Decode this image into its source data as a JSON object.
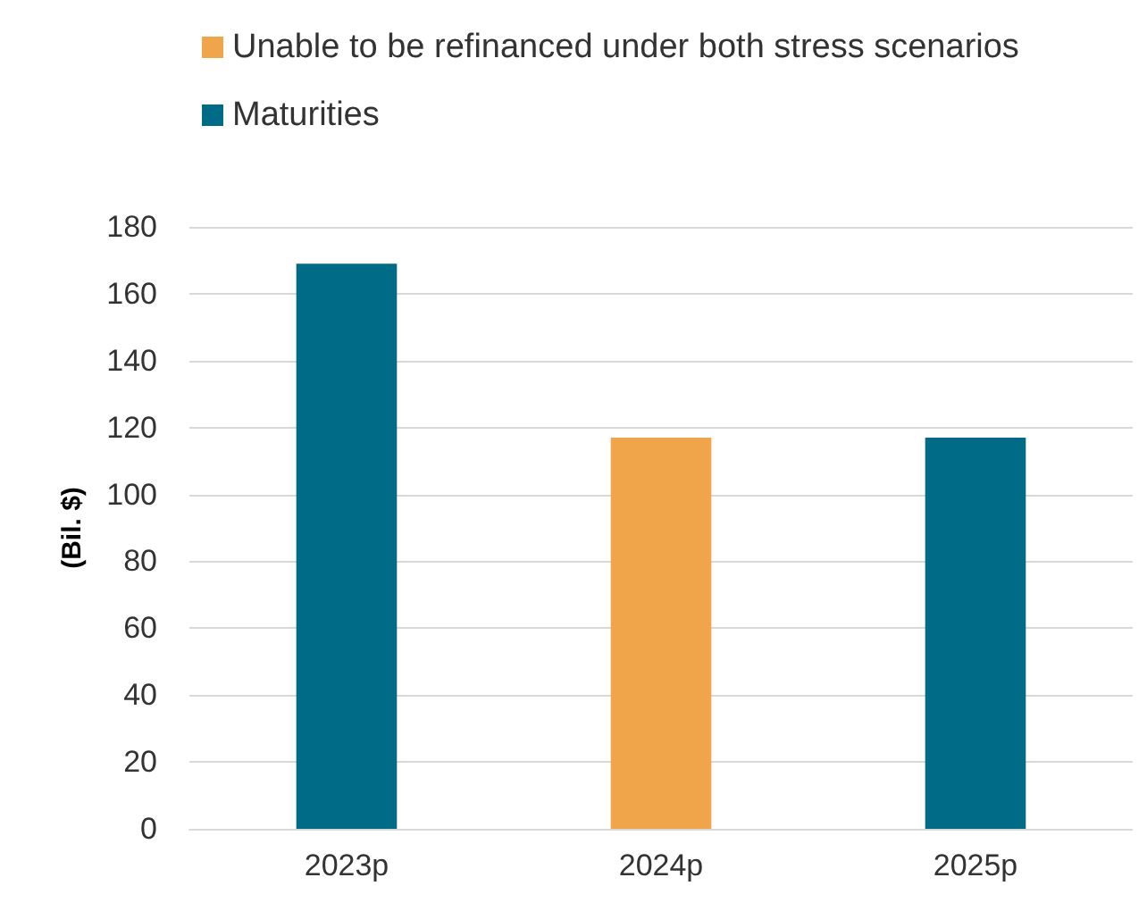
{
  "chart_data": {
    "type": "bar",
    "ylabel": "(Bil. $)",
    "categories": [
      "2023p",
      "2024p",
      "2025p"
    ],
    "series": [
      {
        "name": "Unable to be refinanced under both stress scenarios",
        "color": "#f0a54a",
        "values": [
          null,
          117,
          null
        ]
      },
      {
        "name": "Maturities",
        "color": "#006b87",
        "values": [
          169,
          null,
          117
        ]
      }
    ],
    "stacked": true,
    "ylim": [
      0,
      180
    ],
    "yticks": [
      0,
      20,
      40,
      60,
      80,
      100,
      120,
      140,
      160,
      180
    ],
    "grid": "y",
    "legend": "top"
  }
}
